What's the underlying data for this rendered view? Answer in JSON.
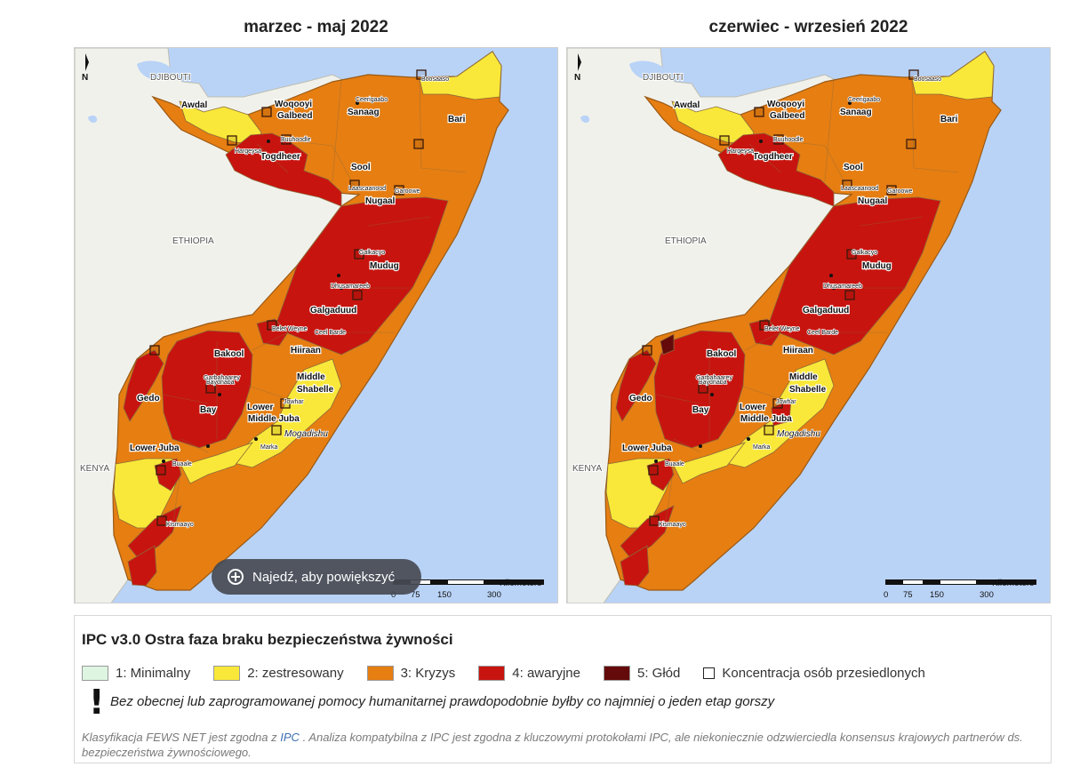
{
  "maps": [
    {
      "title": "marzec - maj 2022"
    },
    {
      "title": "czerwiec - wrzesień 2022"
    }
  ],
  "map_labels": {
    "countries": [
      "DJIBOUTI",
      "ETHIOPIA",
      "KENYA"
    ],
    "regions": [
      "Awdal",
      "Woqooyi",
      "Galbeed",
      "Sanaag",
      "Bari",
      "Togdheer",
      "Sool",
      "Nugaal",
      "Mudug",
      "Galgaduud",
      "Hiiraan",
      "Bakool",
      "Middle",
      "Shabelle",
      "Gedo",
      "Bay",
      "Lower",
      "Middle Juba",
      "Lower Juba"
    ],
    "cities": [
      "Mogadishu",
      "Marka",
      "Hargeysa",
      "Ceerigaabo",
      "Garoowe",
      "Buuhoodle",
      "Laascaanood",
      "Dhusamareeb",
      "Baydhaba",
      "Kismaayo",
      "Buaale",
      "Boosaaso",
      "Galkacyo",
      "Belet Weyne",
      "Jowhar",
      "Garbahaarey",
      "Ceel Barde"
    ],
    "north_symbol": "N",
    "scale_title": "Kilometers",
    "scale_ticks": [
      "0",
      "75",
      "150",
      "300"
    ]
  },
  "zoom_hint": "Najedź, aby powiększyć",
  "legend": {
    "title": "IPC v3.0 Ostra faza braku bezpieczeństwa żywności",
    "items": [
      {
        "label": "1: Minimalny",
        "color": "#def5e1"
      },
      {
        "label": "2: zestresowany",
        "color": "#f9e839"
      },
      {
        "label": "3: Kryzys",
        "color": "#e67e12"
      },
      {
        "label": "4: awaryjne",
        "color": "#c8140f"
      },
      {
        "label": "5: Głód",
        "color": "#640a0a"
      }
    ],
    "idp_label": "Koncentracja osób przesiedlonych",
    "warning_symbol": "!",
    "warning_text": "Bez obecnej lub zaprogramowanej pomocy humanitarnej prawdopodobnie byłby co najmniej o jeden etap gorszy",
    "footnote_pre": "Klasyfikacja FEWS NET jest zgodna z",
    "footnote_link": "IPC",
    "footnote_post": ". Analiza kompatybilna z IPC jest zgodna z kluczowymi protokołami IPC, ale niekoniecznie odzwierciedla konsensus krajowych partnerów ds. bezpieczeństwa żywnościowego."
  }
}
